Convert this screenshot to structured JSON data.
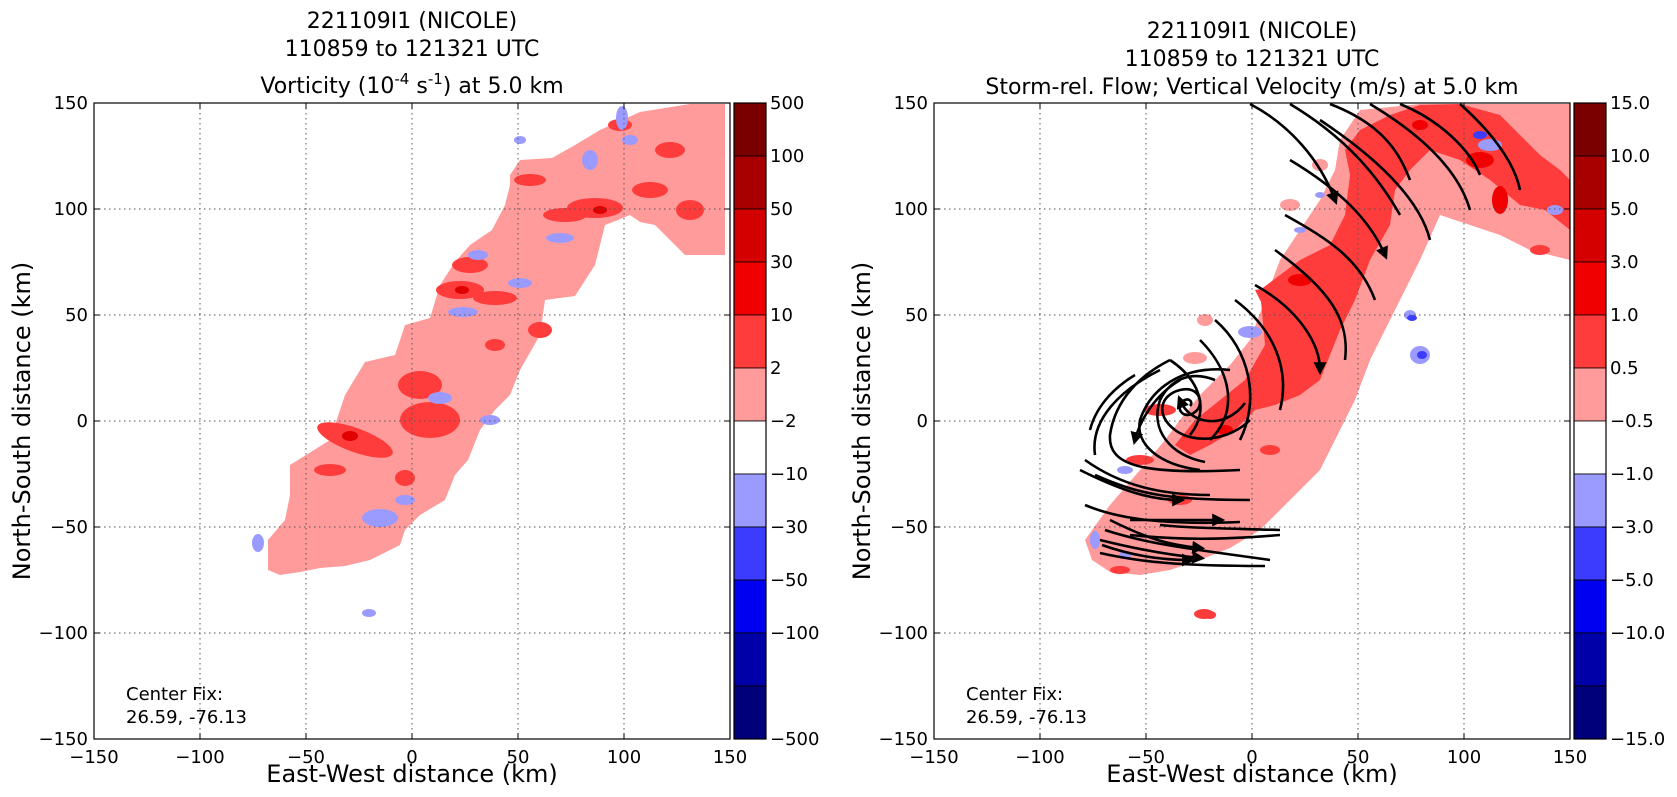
{
  "chart_data": [
    {
      "type": "heatmap",
      "title_lines": [
        "221109I1 (NICOLE)",
        "110859 to 121321 UTC"
      ],
      "title_field_prefix": "Vorticity (10",
      "title_field_exp1": "-4",
      "title_field_mid": " s",
      "title_field_exp2": "-1",
      "title_field_suffix": ") at 5.0 km",
      "xlabel": "East-West distance (km)",
      "ylabel": "North-South distance (km)",
      "xlim": [
        -150,
        150
      ],
      "ylim": [
        -150,
        150
      ],
      "xticks": [
        "−150",
        "−100",
        "−50",
        "0",
        "50",
        "100",
        "150"
      ],
      "yticks": [
        "−150",
        "−100",
        "−50",
        "0",
        "50",
        "100",
        "150"
      ],
      "grid": true,
      "annotation": [
        "Center Fix:",
        "26.59, -76.13"
      ],
      "colorbar": {
        "ticks": [
          "500",
          "100",
          "50",
          "30",
          "10",
          "2",
          "−2",
          "−10",
          "−30",
          "−50",
          "−100",
          "−500"
        ],
        "colors": [
          "#7a0000",
          "#a80000",
          "#d40000",
          "#f00000",
          "#ff3c3c",
          "#ff9b9b",
          "#ffffff",
          "#9b9bff",
          "#3c3cff",
          "#0000f0",
          "#0000a8",
          "#00007a"
        ]
      }
    },
    {
      "type": "heatmap",
      "title_lines": [
        "221109I1 (NICOLE)",
        "110859 to 121321 UTC",
        "Storm-rel. Flow; Vertical Velocity (m/s) at 5.0 km"
      ],
      "xlabel": "East-West distance (km)",
      "ylabel": "North-South distance (km)",
      "xlim": [
        -150,
        150
      ],
      "ylim": [
        -150,
        150
      ],
      "xticks": [
        "−150",
        "−100",
        "−50",
        "0",
        "50",
        "100",
        "150"
      ],
      "yticks": [
        "−150",
        "−100",
        "−50",
        "0",
        "50",
        "100",
        "150"
      ],
      "grid": true,
      "annotation": [
        "Center Fix:",
        "26.59, -76.13"
      ],
      "colorbar": {
        "ticks": [
          "15.0",
          "10.0",
          "5.0",
          "3.0",
          "1.0",
          "0.5",
          "−0.5",
          "−1.0",
          "−3.0",
          "−5.0",
          "−10.0",
          "−15.0"
        ],
        "colors": [
          "#7a0000",
          "#a80000",
          "#d40000",
          "#f00000",
          "#ff3c3c",
          "#ff9b9b",
          "#ffffff",
          "#9b9bff",
          "#3c3cff",
          "#0000f0",
          "#0000a8",
          "#00007a"
        ]
      }
    }
  ]
}
